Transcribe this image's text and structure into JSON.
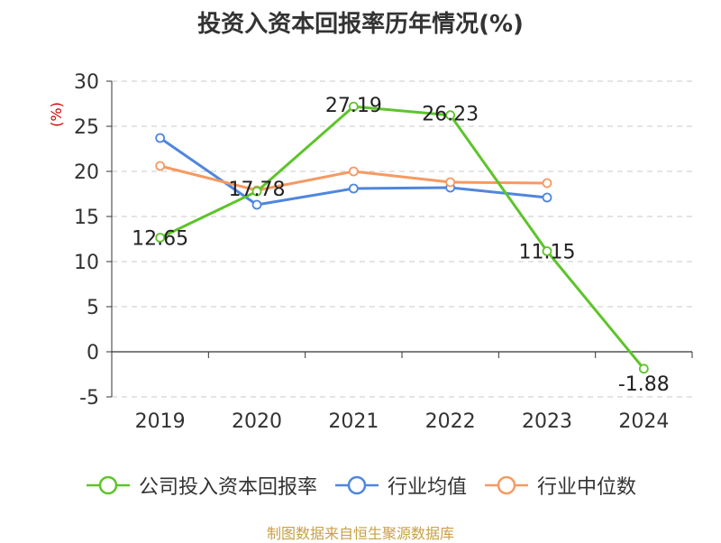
{
  "chart_data": {
    "type": "line",
    "title": "投资入资本回报率历年情况(%)",
    "ylabel": "(%)",
    "xlabel": "",
    "categories": [
      "2019",
      "2020",
      "2021",
      "2022",
      "2023",
      "2024"
    ],
    "ylim": [
      -5,
      30
    ],
    "yticks": [
      30,
      25,
      20,
      15,
      10,
      5,
      0,
      -5
    ],
    "grid": true,
    "legend_position": "bottom",
    "series": [
      {
        "name": "公司投入资本回报率",
        "color": "#5dc42a",
        "values": [
          12.65,
          17.78,
          27.19,
          26.23,
          11.15,
          -1.88
        ],
        "labels": [
          "12.65",
          "17.78",
          "27.19",
          "26.23",
          "11.15",
          "-1.88"
        ]
      },
      {
        "name": "行业均值",
        "color": "#4f86dd",
        "values": [
          23.7,
          16.3,
          18.1,
          18.2,
          17.1,
          null
        ]
      },
      {
        "name": "行业中位数",
        "color": "#f59a62",
        "values": [
          20.6,
          17.9,
          20.0,
          18.8,
          18.7,
          null
        ]
      }
    ]
  },
  "source": "制图数据来自恒生聚源数据库"
}
